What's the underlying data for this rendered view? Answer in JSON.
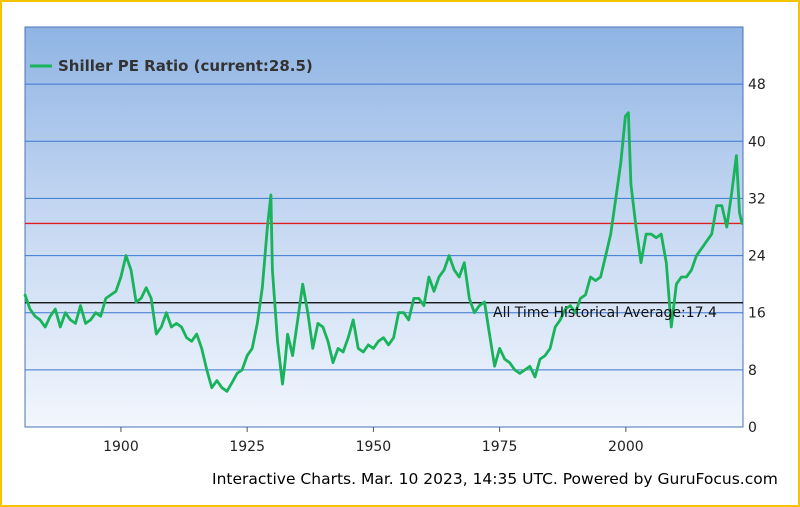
{
  "legend": {
    "label": "Shiller PE Ratio (current:28.5)"
  },
  "footer": {
    "text": "Interactive Charts. Mar. 10 2023, 14:35 UTC. Powered by GuruFocus.com"
  },
  "annotation": {
    "text": "All Time Historical Average:17.4"
  },
  "colors": {
    "series": "#18b35a",
    "current_line": "#e02020",
    "average_line": "#000000",
    "grid": "#3a78d0",
    "border": "#f5c400"
  },
  "chart_data": {
    "type": "line",
    "title": "",
    "xlabel": "",
    "ylabel": "",
    "xlim": [
      1881,
      2023.2
    ],
    "ylim": [
      0,
      56
    ],
    "x_ticks": [
      1900,
      1925,
      1950,
      1975,
      2000
    ],
    "y_ticks": [
      0,
      8,
      16,
      24,
      32,
      40,
      48
    ],
    "y_tick_labels": [
      "0",
      "8",
      "16",
      "24",
      "32",
      "40",
      "48"
    ],
    "x_tick_labels": [
      "1900",
      "1925",
      "1950",
      "1975",
      "2000"
    ],
    "grid": "horizontal",
    "legend_position": "top-left",
    "reference_lines": [
      {
        "kind": "current",
        "value": 28.5
      },
      {
        "kind": "average",
        "value": 17.4
      }
    ],
    "series": [
      {
        "name": "Shiller PE Ratio",
        "x": [
          1881,
          1882,
          1883,
          1884,
          1885,
          1886,
          1887,
          1888,
          1889,
          1890,
          1891,
          1892,
          1893,
          1894,
          1895,
          1896,
          1897,
          1898,
          1899,
          1900,
          1901,
          1902,
          1903,
          1904,
          1905,
          1906,
          1907,
          1908,
          1909,
          1910,
          1911,
          1912,
          1913,
          1914,
          1915,
          1916,
          1917,
          1918,
          1919,
          1920,
          1921,
          1922,
          1923,
          1924,
          1925,
          1926,
          1927,
          1928,
          1929,
          1929.7,
          1930,
          1931,
          1932,
          1932.5,
          1933,
          1934,
          1935,
          1936,
          1937,
          1938,
          1939,
          1940,
          1941,
          1942,
          1943,
          1944,
          1945,
          1946,
          1947,
          1948,
          1949,
          1950,
          1951,
          1952,
          1953,
          1954,
          1955,
          1956,
          1957,
          1958,
          1959,
          1960,
          1961,
          1962,
          1963,
          1964,
          1965,
          1966,
          1967,
          1968,
          1969,
          1970,
          1971,
          1972,
          1973,
          1974,
          1975,
          1976,
          1977,
          1978,
          1979,
          1980,
          1981,
          1982,
          1983,
          1984,
          1985,
          1986,
          1987,
          1988,
          1989,
          1990,
          1991,
          1992,
          1993,
          1994,
          1995,
          1996,
          1997,
          1998,
          1999,
          1999.9,
          2000.5,
          2001,
          2002,
          2003,
          2004,
          2005,
          2006,
          2007,
          2008,
          2009,
          2010,
          2011,
          2012,
          2013,
          2014,
          2015,
          2016,
          2017,
          2018,
          2019,
          2020,
          2021,
          2021.9,
          2022.5,
          2023
        ],
        "values": [
          18.5,
          16.5,
          15.5,
          15,
          14,
          15.5,
          16.5,
          14,
          16,
          15,
          14.5,
          17,
          14.5,
          15,
          16,
          15.5,
          18,
          18.5,
          19,
          21,
          24,
          22,
          17.5,
          18,
          19.5,
          18,
          13,
          14,
          16,
          14,
          14.5,
          14,
          12.5,
          12,
          13,
          11,
          8,
          5.5,
          6.5,
          5.5,
          5,
          6.2,
          7.5,
          8,
          10,
          11,
          14.5,
          19.5,
          28,
          32.5,
          22,
          12,
          6,
          9,
          13,
          10,
          15,
          20,
          16,
          11,
          14.5,
          14,
          12,
          9,
          11,
          10.5,
          12.5,
          15,
          11,
          10.5,
          11.5,
          11,
          12,
          12.5,
          11.5,
          12.5,
          16,
          16,
          15,
          18,
          18,
          17,
          21,
          19,
          21,
          22,
          24,
          22,
          21,
          23,
          18,
          16,
          17,
          17.5,
          13,
          8.5,
          11,
          9.5,
          9,
          8,
          7.5,
          8,
          8.5,
          7,
          9.5,
          10,
          11,
          14,
          15,
          16.5,
          17,
          16,
          18,
          18.5,
          21,
          20.5,
          21,
          24,
          27,
          32,
          37,
          43.5,
          44,
          34,
          28,
          23,
          27,
          27,
          26.5,
          27,
          23,
          14,
          20,
          21,
          21,
          22,
          24,
          25,
          26,
          27,
          31,
          31,
          28,
          33,
          38,
          30,
          28.5
        ]
      }
    ]
  }
}
